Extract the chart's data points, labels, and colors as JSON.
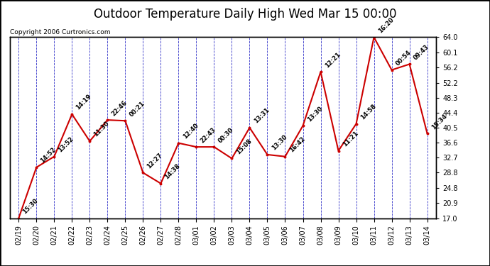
{
  "title": "Outdoor Temperature Daily High Wed Mar 15 00:00",
  "copyright": "Copyright 2006 Curtronics.com",
  "x_labels": [
    "02/19",
    "02/20",
    "02/21",
    "02/22",
    "02/23",
    "02/24",
    "02/25",
    "02/26",
    "02/27",
    "02/28",
    "03/01",
    "03/02",
    "03/03",
    "03/04",
    "03/05",
    "03/06",
    "03/07",
    "03/08",
    "03/09",
    "03/10",
    "03/11",
    "03/12",
    "03/13",
    "03/14"
  ],
  "y_values": [
    17.0,
    30.2,
    33.0,
    44.0,
    37.0,
    42.5,
    42.3,
    28.8,
    26.0,
    36.5,
    35.5,
    35.5,
    32.5,
    40.5,
    33.5,
    33.0,
    41.0,
    55.0,
    34.5,
    41.5,
    64.0,
    55.5,
    57.0,
    39.0
  ],
  "point_labels": [
    "15:30",
    "14:52",
    "13:52",
    "14:19",
    "11:30",
    "22:46",
    "00:21",
    "12:27",
    "14:38",
    "12:40",
    "22:43",
    "00:30",
    "15:08",
    "13:31",
    "13:30",
    "16:42",
    "13:30",
    "12:21",
    "11:21",
    "14:58",
    "16:20",
    "00:54",
    "09:43",
    "15:34"
  ],
  "y_ticks": [
    17.0,
    20.9,
    24.8,
    28.8,
    32.7,
    36.6,
    40.5,
    44.4,
    48.3,
    52.2,
    56.2,
    60.1,
    64.0
  ],
  "line_color": "#cc0000",
  "marker_color": "#cc0000",
  "background_color": "#ffffff",
  "plot_bg_color": "#ffffff",
  "grid_color": "#0000bb",
  "title_fontsize": 12,
  "tick_fontsize": 7,
  "annotation_fontsize": 6,
  "ylim": [
    17.0,
    64.0
  ]
}
